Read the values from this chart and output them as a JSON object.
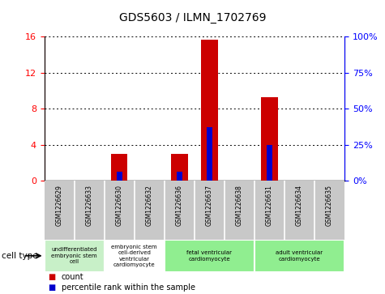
{
  "title": "GDS5603 / ILMN_1702769",
  "samples": [
    "GSM1226629",
    "GSM1226633",
    "GSM1226630",
    "GSM1226632",
    "GSM1226636",
    "GSM1226637",
    "GSM1226638",
    "GSM1226631",
    "GSM1226634",
    "GSM1226635"
  ],
  "counts": [
    0,
    0,
    3.0,
    0,
    3.0,
    15.7,
    0,
    9.3,
    0,
    0
  ],
  "percentile_ranks_scaled": [
    0,
    0,
    1.0,
    0,
    1.0,
    6.0,
    0,
    4.0,
    0,
    0
  ],
  "ylim_left": [
    0,
    16
  ],
  "ylim_right": [
    0,
    100
  ],
  "yticks_left": [
    0,
    4,
    8,
    12,
    16
  ],
  "yticks_right": [
    0,
    25,
    50,
    75,
    100
  ],
  "cell_types": [
    {
      "label": "undifferentiated\nembryonic stem\ncell",
      "span": [
        0,
        2
      ],
      "color": "#c8f0c8"
    },
    {
      "label": "embryonic stem\ncell-derived\nventricular\ncardiomyocyte",
      "span": [
        2,
        4
      ],
      "color": "#ffffff"
    },
    {
      "label": "fetal ventricular\ncardiomyocyte",
      "span": [
        4,
        7
      ],
      "color": "#90ee90"
    },
    {
      "label": "adult ventricular\ncardiomyocyte",
      "span": [
        7,
        10
      ],
      "color": "#90ee90"
    }
  ],
  "bar_color": "#cc0000",
  "percentile_color": "#0000cc",
  "tick_bg_color": "#c8c8c8",
  "cell_type_label": "cell type",
  "legend_count_label": "count",
  "legend_percentile_label": "percentile rank within the sample",
  "bar_width": 0.55,
  "percentile_bar_width": 0.18
}
